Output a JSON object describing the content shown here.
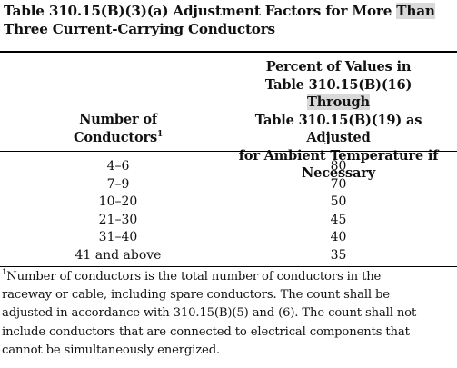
{
  "table": {
    "caption_line1_pre": "Table 310.15(B)(3)(a)  Adjustment Factors for More ",
    "caption_line1_highlight": "Than",
    "caption_line2": "Three Current-Carrying Conductors",
    "col1_header_line1": "Number of",
    "col1_header_line2": "Conductors",
    "col1_header_footnote_mark": "1",
    "col2_header_line1": "Percent of Values in",
    "col2_header_line2_pre": "Table 310.15(B)(16) ",
    "col2_header_line2_highlight": "Through",
    "col2_header_line3": "Table 310.15(B)(19) as Adjusted",
    "col2_header_line4": "for Ambient Temperature if",
    "col2_header_line5": "Necessary",
    "rows": [
      {
        "conductors": "4–6",
        "percent": "80"
      },
      {
        "conductors": "7–9",
        "percent": "70"
      },
      {
        "conductors": "10–20",
        "percent": "50"
      },
      {
        "conductors": "21–30",
        "percent": "45"
      },
      {
        "conductors": "31–40",
        "percent": "40"
      },
      {
        "conductors": "41 and above",
        "percent": "35"
      }
    ]
  },
  "footnote": {
    "mark": "1",
    "line1": "Number of conductors is the total number of conductors in the",
    "line2": "raceway or cable, including spare conductors. The count shall be",
    "line3": "adjusted in accordance with 310.15(B)(5) and (6). The count shall not",
    "line4": "include conductors that are connected to electrical components that",
    "line5": "cannot be simultaneously energized."
  },
  "colors": {
    "highlight": "#d9d9d9",
    "text": "#111111"
  }
}
